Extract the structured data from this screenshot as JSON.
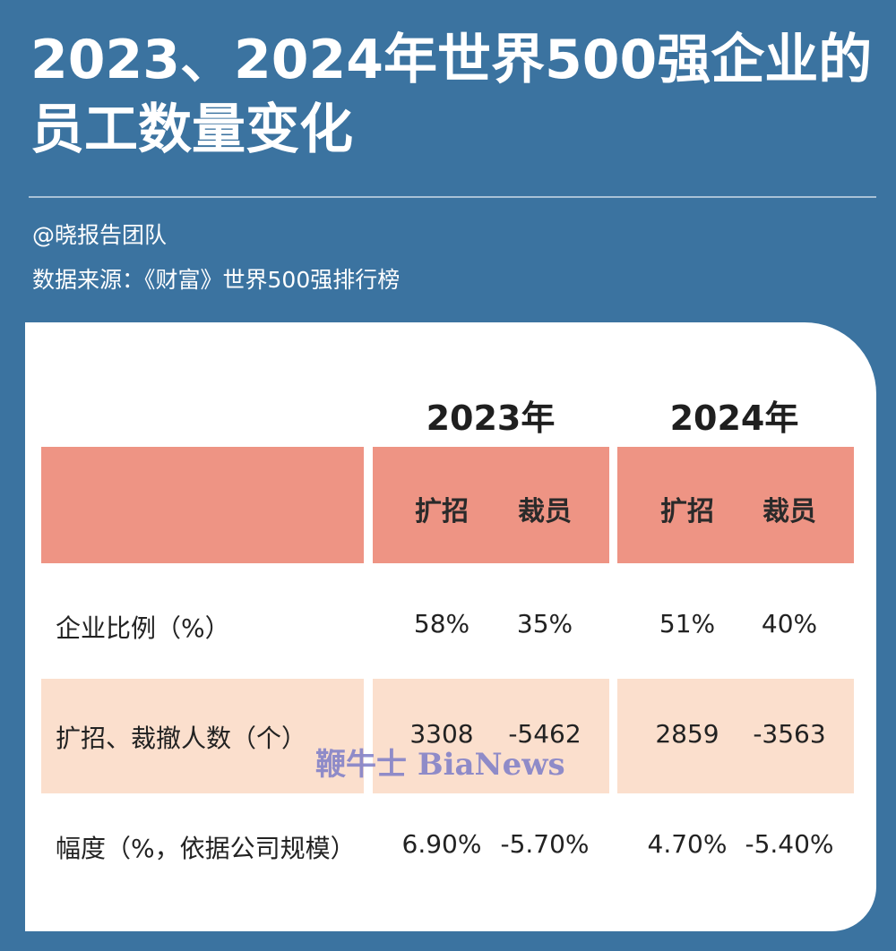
{
  "header": {
    "title": "2023、2024年世界500强企业的员工数量变化",
    "author": "@晓报告团队",
    "source": "数据来源：《财富》世界500强排行榜"
  },
  "table": {
    "years": [
      "2023年",
      "2024年"
    ],
    "columns": [
      "扩招",
      "裁员",
      "扩招",
      "裁员"
    ],
    "rows": [
      {
        "label": "企业比例（%）",
        "values": [
          "58%",
          "35%",
          "51%",
          "40%"
        ]
      },
      {
        "label": "扩招、裁撤人数（个）",
        "values": [
          "3308",
          "-5462",
          "2859",
          "-3563"
        ]
      },
      {
        "label": "幅度（%，依据公司规模）",
        "values": [
          "6.90%",
          "-5.70%",
          "4.70%",
          "-5.40%"
        ]
      }
    ]
  },
  "watermark": "鞭牛士 BiaNews",
  "colors": {
    "background": "#3b73a0",
    "header_fill": "#ee9484",
    "band_fill": "#fbdfcd"
  }
}
